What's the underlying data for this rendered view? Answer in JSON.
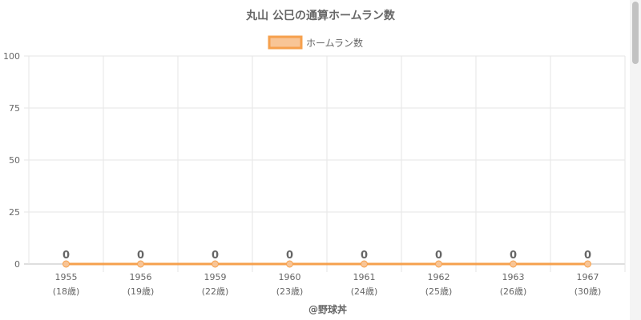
{
  "chart_data": {
    "type": "line",
    "title": "丸山 公巳の通算ホームラン数",
    "legend_position": "top-center",
    "grid": true,
    "categories": [
      "1955",
      "1956",
      "1959",
      "1960",
      "1961",
      "1962",
      "1963",
      "1967"
    ],
    "sublabels": [
      "(18歳)",
      "(19歳)",
      "(22歳)",
      "(23歳)",
      "(24歳)",
      "(25歳)",
      "(26歳)",
      "(30歳)"
    ],
    "series": [
      {
        "name": "ホームラン数",
        "values": [
          0,
          0,
          0,
          0,
          0,
          0,
          0,
          0
        ],
        "color": "#f6a04d"
      }
    ],
    "ylim": [
      0,
      100
    ],
    "yticks": [
      "0",
      "25",
      "50",
      "75",
      "100"
    ],
    "data_labels": [
      "0",
      "0",
      "0",
      "0",
      "0",
      "0",
      "0",
      "0"
    ],
    "credit": "@野球丼"
  },
  "colors": {
    "line": "#f6a04d",
    "legend_fill": "#f8c596",
    "grid": "#e5e5e5",
    "text": "#666666"
  }
}
